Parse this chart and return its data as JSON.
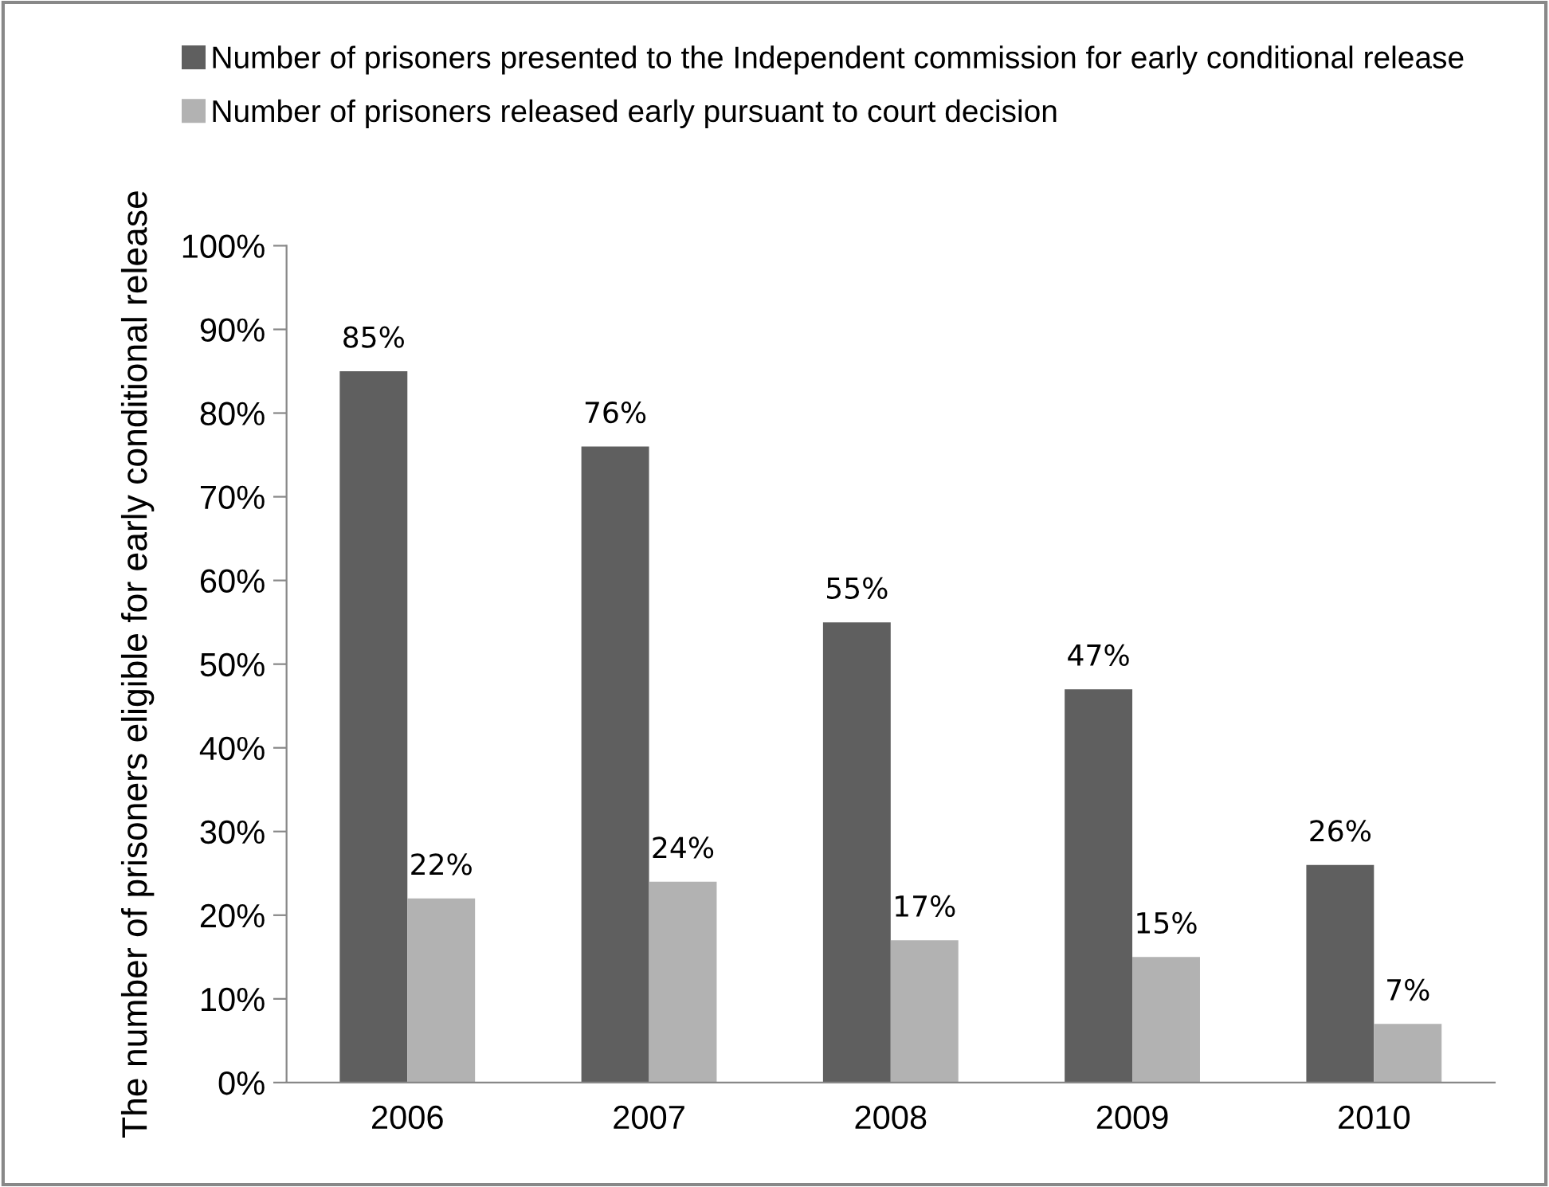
{
  "chart_data": {
    "type": "bar",
    "ylabel": "The number of prisoners eligible for early conditional release",
    "categories": [
      "2006",
      "2007",
      "2008",
      "2009",
      "2010"
    ],
    "series": [
      {
        "name": "Number of prisoners presented to the Independent commission for early conditional release",
        "color": "#5f5f5f",
        "values": [
          85,
          76,
          55,
          47,
          26
        ]
      },
      {
        "name": "Number of prisoners released early pursuant to court decision",
        "color": "#b2b2b2",
        "values": [
          22,
          24,
          17,
          15,
          7
        ]
      }
    ],
    "ylim": [
      0,
      100
    ],
    "yticks": [
      {
        "value": 0,
        "label": "0%"
      },
      {
        "value": 10,
        "label": "10%"
      },
      {
        "value": 20,
        "label": "20%"
      },
      {
        "value": 30,
        "label": "30%"
      },
      {
        "value": 40,
        "label": "40%"
      },
      {
        "value": 50,
        "label": "50%"
      },
      {
        "value": 60,
        "label": "60%"
      },
      {
        "value": 70,
        "label": "70%"
      },
      {
        "value": 80,
        "label": "80%"
      },
      {
        "value": 90,
        "label": "90%"
      },
      {
        "value": 100,
        "label": "100%"
      }
    ],
    "value_labels": [
      [
        "85%",
        "76%",
        "55%",
        "47%",
        "26%"
      ],
      [
        "22%",
        "24%",
        "17%",
        "15%",
        "7%"
      ]
    ],
    "grid": false,
    "legend": "top"
  }
}
